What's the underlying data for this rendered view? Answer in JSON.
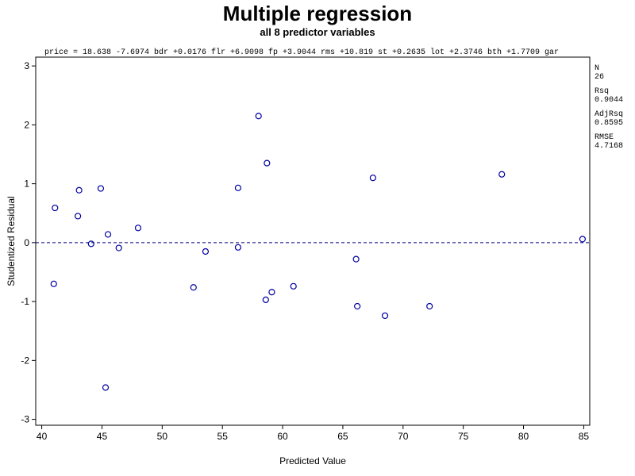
{
  "chart_data": {
    "type": "scatter",
    "title": "Multiple regression",
    "subtitle": "all 8 predictor variables",
    "equation": "price = 18.638 -7.6974 bdr +0.0176 flr +6.9098 fp +3.9044 rms +10.819 st +0.2635 lot +2.3746 bth +1.7709 gar",
    "xlabel": "Predicted Value",
    "ylabel": "Studentized Residual",
    "xlim": [
      39.5,
      85.5
    ],
    "ylim": [
      -3.1,
      3.15
    ],
    "xticks": [
      40,
      45,
      50,
      55,
      60,
      65,
      70,
      75,
      80,
      85
    ],
    "yticks": [
      -3,
      -2,
      -1,
      0,
      1,
      2,
      3
    ],
    "reference_line_y": 0,
    "grid": false,
    "marker_color": "#0000a0",
    "reference_line_color": "#000080",
    "stats": [
      {
        "label": "N",
        "value": "26"
      },
      {
        "label": "Rsq",
        "value": "0.9044"
      },
      {
        "label": "AdjRsq",
        "value": "0.8595"
      },
      {
        "label": "RMSE",
        "value": "4.7168"
      }
    ],
    "points": [
      {
        "x": 41.0,
        "y": -0.7
      },
      {
        "x": 41.1,
        "y": 0.59
      },
      {
        "x": 43.0,
        "y": 0.45
      },
      {
        "x": 43.1,
        "y": 0.89
      },
      {
        "x": 44.1,
        "y": -0.02
      },
      {
        "x": 44.9,
        "y": 0.92
      },
      {
        "x": 45.3,
        "y": -2.46
      },
      {
        "x": 45.5,
        "y": 0.14
      },
      {
        "x": 46.4,
        "y": -0.09
      },
      {
        "x": 48.0,
        "y": 0.25
      },
      {
        "x": 52.6,
        "y": -0.76
      },
      {
        "x": 53.6,
        "y": -0.15
      },
      {
        "x": 56.3,
        "y": 0.93
      },
      {
        "x": 56.3,
        "y": -0.08
      },
      {
        "x": 58.0,
        "y": 2.15
      },
      {
        "x": 58.6,
        "y": -0.97
      },
      {
        "x": 58.7,
        "y": 1.35
      },
      {
        "x": 59.1,
        "y": -0.84
      },
      {
        "x": 60.9,
        "y": -0.74
      },
      {
        "x": 66.1,
        "y": -0.28
      },
      {
        "x": 66.2,
        "y": -1.08
      },
      {
        "x": 67.5,
        "y": 1.1
      },
      {
        "x": 68.5,
        "y": -1.24
      },
      {
        "x": 72.2,
        "y": -1.08
      },
      {
        "x": 78.2,
        "y": 1.16
      },
      {
        "x": 84.9,
        "y": 0.06
      }
    ]
  }
}
